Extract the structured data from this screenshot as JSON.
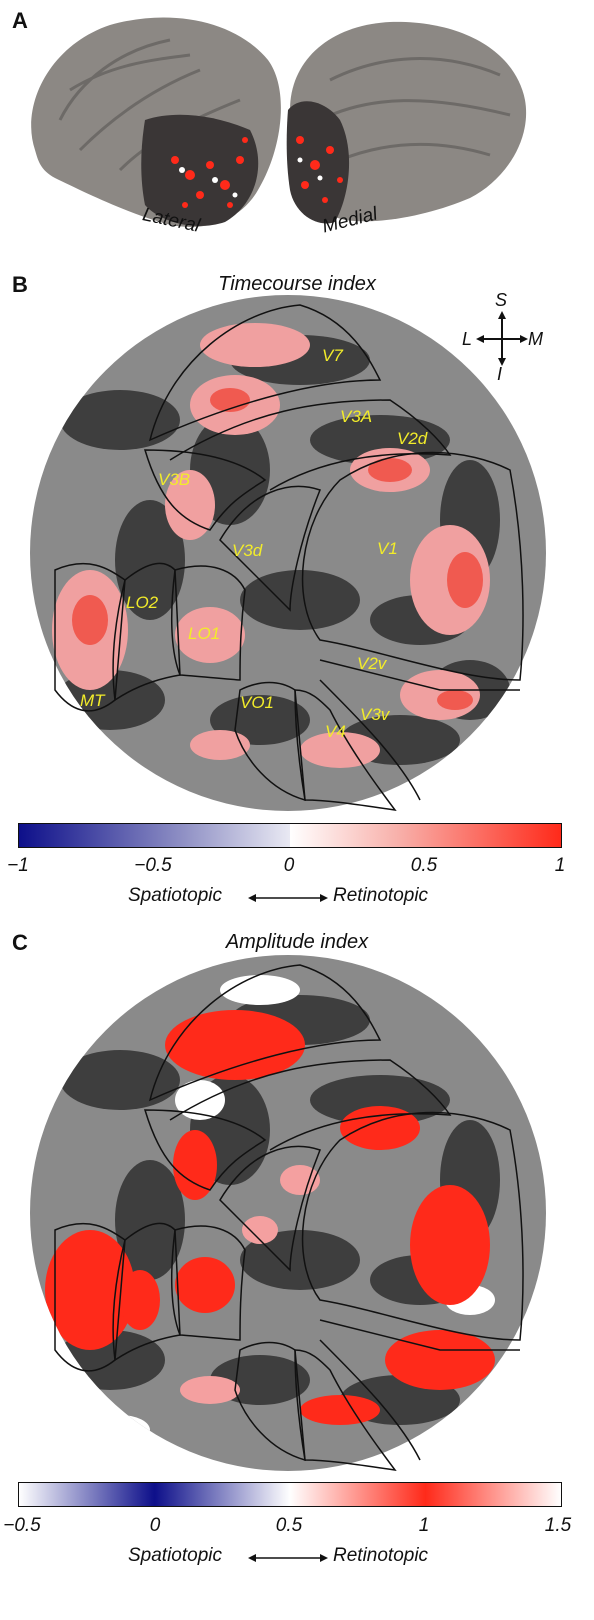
{
  "panels": {
    "a": {
      "letter": "A",
      "lateral_label": "Lateral",
      "medial_label": "Medial"
    },
    "b": {
      "letter": "B",
      "title": "Timecourse index"
    },
    "c": {
      "letter": "C",
      "title": "Amplitude index"
    }
  },
  "orientation": {
    "superior": "S",
    "inferior": "I",
    "lateral": "L",
    "medial": "M"
  },
  "regions": [
    "V7",
    "V3A",
    "V2d",
    "V3B",
    "V3d",
    "V1",
    "LO2",
    "LO1",
    "V2v",
    "MT",
    "VO1",
    "V4",
    "V3v"
  ],
  "colorbar_b": {
    "ticks": [
      "−1",
      "−0.5",
      "0",
      "0.5",
      "1"
    ],
    "caption_left": "Spatiotopic",
    "caption_right": "Retinotopic",
    "colors": [
      "#0d0f8a",
      "#e9e9f3",
      "#ffffff",
      "#ff2a1a"
    ]
  },
  "colorbar_c": {
    "ticks": [
      "−0.5",
      "0",
      "0.5",
      "1",
      "1.5"
    ],
    "caption_left": "Spatiotopic",
    "caption_right": "Retinotopic",
    "colors": [
      "#ffffff",
      "#0d0f8a",
      "#ffffff",
      "#ff2a1a",
      "#ffffff"
    ]
  }
}
